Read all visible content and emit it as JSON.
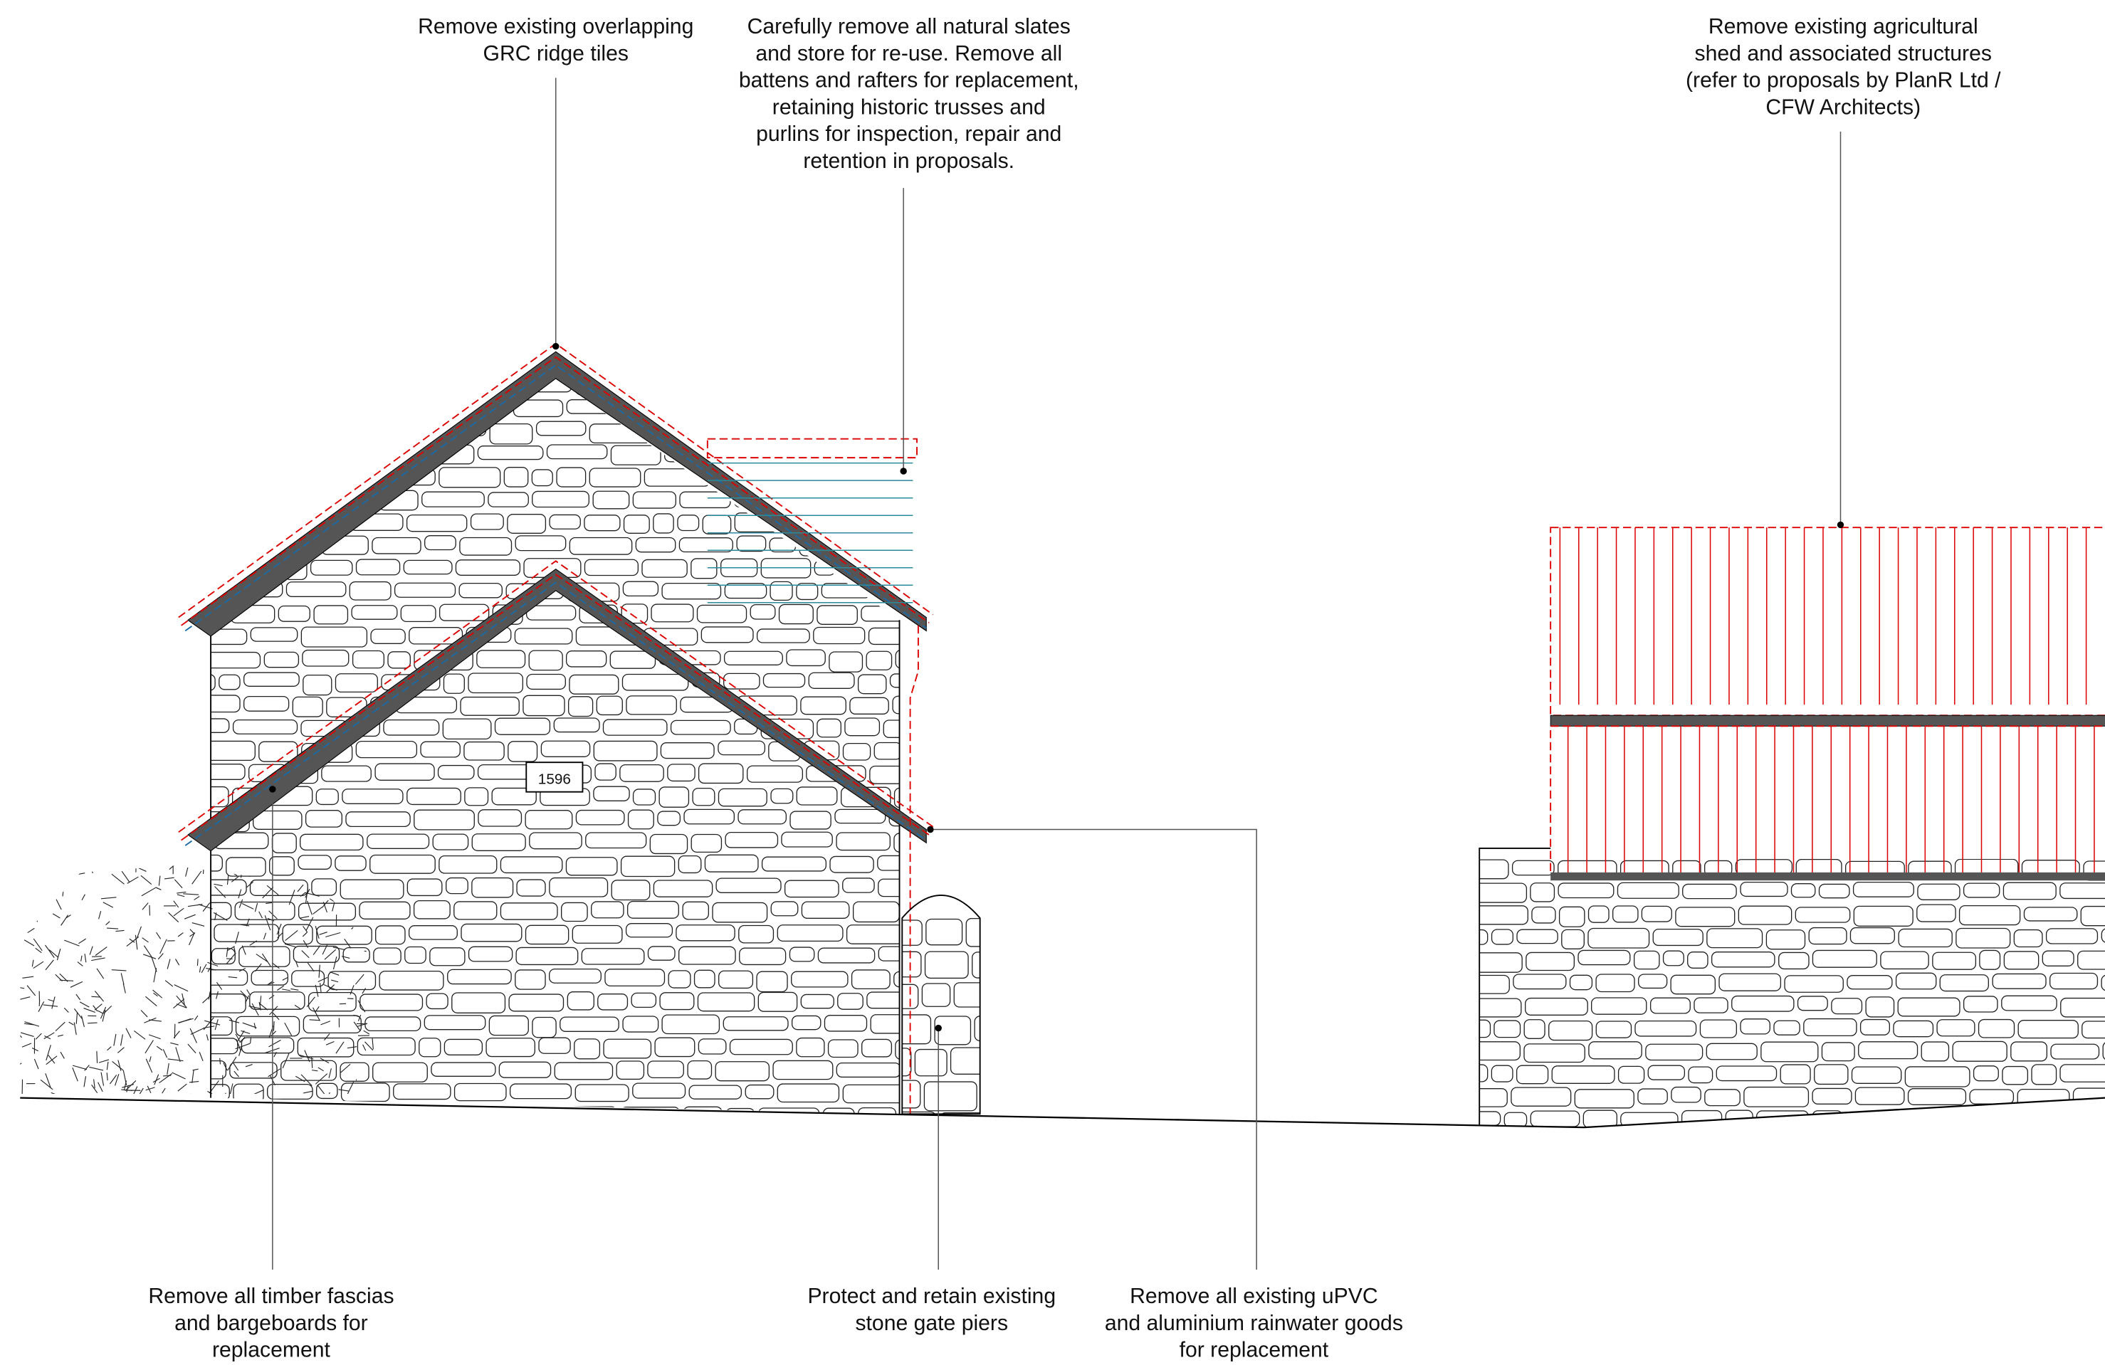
{
  "annotations": [
    {
      "lines": [
        "Remove existing overlapping",
        "GRC ridge tiles"
      ]
    },
    {
      "lines": [
        "Carefully remove all natural slates",
        "and store for re-use. Remove all",
        "battens and rafters for replacement,",
        "retaining historic trusses and",
        "purlins for inspection, repair and",
        "retention in proposals."
      ]
    },
    {
      "lines": [
        "Remove existing agricultural",
        "shed and associated structures",
        "(refer to proposals by PlanR Ltd /",
        "CFW Architects)"
      ]
    },
    {
      "lines": [
        "Remove all timber fascias",
        "and bargeboards for",
        "replacement"
      ]
    },
    {
      "lines": [
        "Protect and retain existing",
        "stone gate piers"
      ]
    },
    {
      "lines": [
        "Remove all existing uPVC",
        "and aluminium rainwater goods",
        "for replacement"
      ]
    }
  ],
  "level_label": "1596"
}
